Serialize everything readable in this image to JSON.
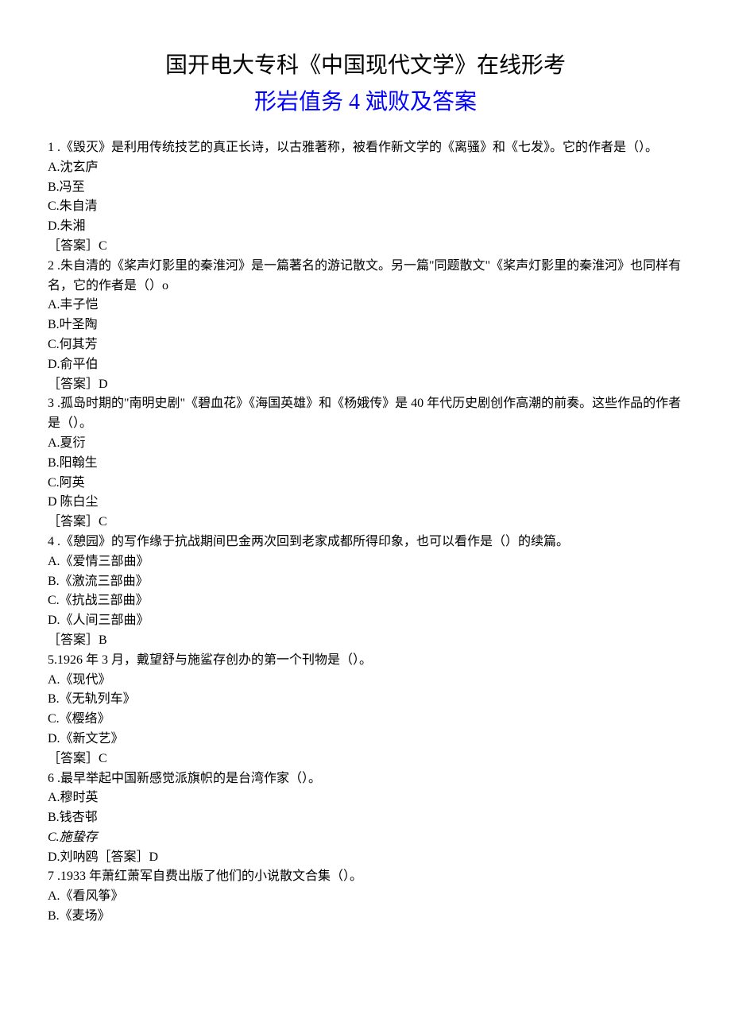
{
  "title": {
    "line1": "国开电大专科《中国现代文学》在线形考",
    "line2": "形岩值务 4 斌败及答案"
  },
  "content": {
    "q1": {
      "stem": "1 .《毁灭》是利用传统技艺的真正长诗，以古雅著称，被看作新文学的《离骚》和《七发》。它的作者是（）。",
      "a": "A.沈玄庐",
      "b": "B.冯至",
      "c": "C.朱自清",
      "d": "D.朱湘",
      "ans": "［答案］C"
    },
    "q2": {
      "stem": "2 .朱自清的《桨声灯影里的秦淮河》是一篇著名的游记散文。另一篇\"同题散文\"《桨声灯影里的秦淮河》也同样有名，它的作者是（）o",
      "a": "A.丰子恺",
      "b": "B.叶圣陶",
      "c": "C.何其芳",
      "d": "D.俞平伯",
      "ans": "［答案］D"
    },
    "q3": {
      "stem": "3 .孤岛时期的\"南明史剧\"《碧血花》《海国英雄》和《杨娥传》是 40 年代历史剧创作高潮的前奏。这些作品的作者是（）。",
      "a": "A.夏衍",
      "b": "B.阳翰生",
      "c": "C.阿英",
      "d": "D 陈白尘",
      "ans": "［答案］C"
    },
    "q4": {
      "stem": "4 .《憩园》的写作缘于抗战期间巴金两次回到老家成都所得印象，也可以看作是（）的续篇。",
      "a": "A.《爱情三部曲》",
      "b": "B.《激流三部曲》",
      "c": "C.《抗战三部曲》",
      "d": "D.《人间三部曲》",
      "ans": "［答案］B"
    },
    "q5": {
      "stem": "5.1926 年 3 月，戴望舒与施鲨存创办的第一个刊物是（）。",
      "a": "A.《现代》",
      "b": "B.《无轨列车》",
      "c": "C.《樱络》",
      "d": "D.《新文艺》",
      "ans": "［答案］C"
    },
    "q6": {
      "stem": "6 .最早举起中国新感觉派旗帜的是台湾作家（）。",
      "a": "A.穆时英",
      "b": "B.钱杏邨",
      "c": "C.施蛰存",
      "d": "D.刘呐鸥［答案］D"
    },
    "q7": {
      "stem": "7 .1933 年萧红萧军自费出版了他们的小说散文合集（）。",
      "a": "A.《看风筝》",
      "b": "B.《麦场》"
    }
  }
}
